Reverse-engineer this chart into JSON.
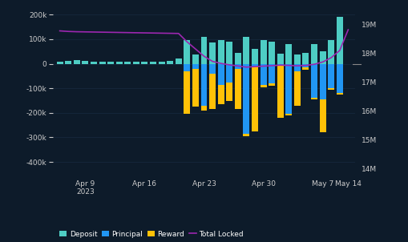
{
  "background_color": "#0d1b2a",
  "text_color": "#ffffff",
  "n_bars": 35,
  "deposit": [
    8000,
    12000,
    14000,
    10000,
    8000,
    9000,
    8000,
    7000,
    9000,
    8000,
    7000,
    8000,
    9000,
    10000,
    20000,
    95000,
    38000,
    110000,
    85000,
    95000,
    90000,
    45000,
    110000,
    60000,
    95000,
    90000,
    42000,
    80000,
    38000,
    45000,
    80000,
    50000,
    95000,
    190000,
    0
  ],
  "principal": [
    0,
    0,
    0,
    0,
    0,
    0,
    0,
    0,
    0,
    0,
    0,
    0,
    0,
    0,
    0,
    -30000,
    -20000,
    -170000,
    -40000,
    -85000,
    -75000,
    -20000,
    -285000,
    -10000,
    -85000,
    -80000,
    -5000,
    -205000,
    -30000,
    -15000,
    -140000,
    -145000,
    -100000,
    -120000,
    0
  ],
  "reward": [
    0,
    0,
    0,
    0,
    0,
    0,
    0,
    0,
    0,
    0,
    0,
    0,
    0,
    0,
    0,
    -175000,
    -155000,
    -20000,
    -145000,
    -80000,
    -75000,
    -165000,
    -10000,
    -265000,
    -10000,
    -10000,
    -215000,
    -5000,
    -140000,
    -10000,
    -5000,
    -135000,
    -5000,
    -5000,
    0
  ],
  "total_locked": [
    18780000,
    18760000,
    18750000,
    18745000,
    18740000,
    18735000,
    18730000,
    18725000,
    18720000,
    18715000,
    18710000,
    18705000,
    18700000,
    18695000,
    18690000,
    18400000,
    18150000,
    17900000,
    17720000,
    17650000,
    17600000,
    17560000,
    17520000,
    17540000,
    17555000,
    17570000,
    17590000,
    17580000,
    17565000,
    17580000,
    17620000,
    17700000,
    17850000,
    18100000,
    18820000
  ],
  "deposit_color": "#4ecdc4",
  "principal_color": "#2196f3",
  "reward_color": "#ffc107",
  "line_color": "#9c27b0",
  "tick_label_color": "#cccccc",
  "grid_color": "#1a2e45",
  "xtick_positions": [
    3,
    10,
    17,
    24,
    31,
    34
  ],
  "xtick_labels": [
    "Apr 9\n2023",
    "Apr 16",
    "Apr 23",
    "Apr 30",
    "May 7",
    "May 14"
  ],
  "ylim_left": [
    -450000,
    230000
  ],
  "ylim_right": [
    13800000,
    19600000
  ],
  "ytick_left": [
    -400000,
    -300000,
    -200000,
    -100000,
    0,
    100000,
    200000
  ],
  "ytick_left_labels": [
    "-400k",
    "-300k",
    "-200k",
    "-100k",
    "0",
    "100k",
    "200k"
  ],
  "ytick_right": [
    14000000,
    15000000,
    16000000,
    17000000,
    18000000,
    19000000
  ],
  "ytick_right_labels": [
    "14M",
    "15M",
    "16M",
    "17M",
    "18M",
    "19M"
  ]
}
